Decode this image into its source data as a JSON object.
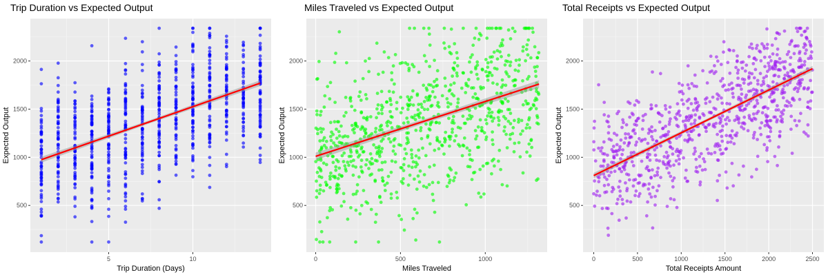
{
  "chart_data": [
    {
      "type": "scatter",
      "title": "Trip Duration vs Expected Output",
      "xlabel": "Trip Duration (Days)",
      "ylabel": "Expected Output",
      "xlim": [
        0.35,
        14.65
      ],
      "ylim": [
        15,
        2440
      ],
      "xticks": [
        5,
        10
      ],
      "yticks": [
        500,
        1000,
        1500,
        2000
      ],
      "grid": true,
      "point_color": "#0000ff",
      "fit_line": {
        "color": "#ff0000",
        "x": [
          1,
          14
        ],
        "y": [
          975,
          1770
        ],
        "band": 30
      },
      "discrete_x": true,
      "x_domain": [
        1,
        14
      ],
      "y_range": [
        120,
        2340
      ],
      "trend": [
        975,
        1770
      ],
      "spread": 370,
      "n_points": 850
    },
    {
      "type": "scatter",
      "title": "Miles Traveled vs Expected Output",
      "xlabel": "Miles Traveled",
      "ylabel": "Expected Output",
      "xlim": [
        -55,
        1365
      ],
      "ylim": [
        15,
        2440
      ],
      "xticks": [
        0,
        500,
        1000
      ],
      "yticks": [
        500,
        1000,
        1500,
        2000
      ],
      "grid": true,
      "point_color": "#00ff00",
      "fit_line": {
        "color": "#ff0000",
        "x": [
          0,
          1317
        ],
        "y": [
          1010,
          1760
        ],
        "band": 40
      },
      "discrete_x": false,
      "x_domain": [
        0,
        1317
      ],
      "y_range": [
        120,
        2340
      ],
      "trend": [
        1010,
        1760
      ],
      "spread": 430,
      "n_points": 850
    },
    {
      "type": "scatter",
      "title": "Total Receipts vs Expected Output",
      "xlabel": "Total Receipts Amount",
      "ylabel": "Expected Output",
      "xlim": [
        -122,
        2630
      ],
      "ylim": [
        15,
        2440
      ],
      "xticks": [
        0,
        500,
        1000,
        1500,
        2000,
        2500
      ],
      "yticks": [
        500,
        1000,
        1500,
        2000
      ],
      "grid": true,
      "point_color": "#a020f0",
      "fit_line": {
        "color": "#ff0000",
        "x": [
          0,
          2500
        ],
        "y": [
          810,
          1920
        ],
        "band": 28
      },
      "discrete_x": false,
      "x_domain": [
        0,
        2500
      ],
      "y_range": [
        120,
        2340
      ],
      "trend": [
        810,
        1920
      ],
      "spread": 300,
      "n_points": 850
    }
  ]
}
